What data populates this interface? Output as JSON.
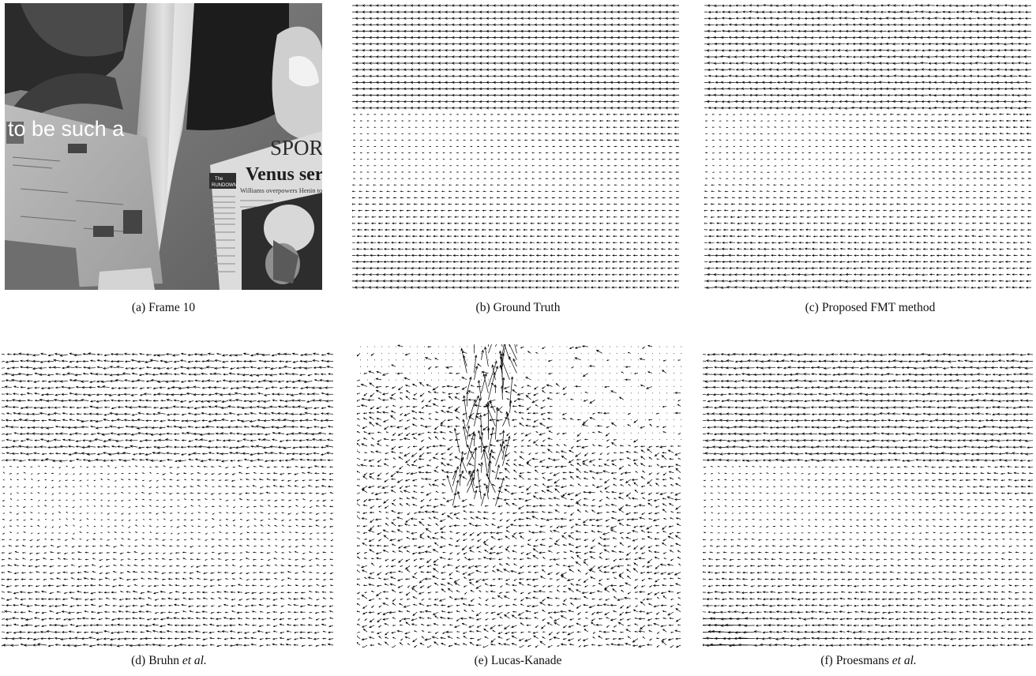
{
  "figure": {
    "panels": [
      {
        "tag": "(a)",
        "name": "Frame 10",
        "suffix": ""
      },
      {
        "tag": "(b)",
        "name": "Ground Truth",
        "suffix": ""
      },
      {
        "tag": "(c)",
        "name": "Proposed FMT method",
        "suffix": ""
      },
      {
        "tag": "(d)",
        "name": "Bruhn",
        "suffix": "et al."
      },
      {
        "tag": "(e)",
        "name": "Lucas-Kanade",
        "suffix": ""
      },
      {
        "tag": "(f)",
        "name": "Proesmans",
        "suffix": "et al."
      }
    ],
    "frame_text": {
      "headline_left": "to be such a",
      "masthead": "SPORT",
      "headline": "Venus serves",
      "subhead": "Williams overpowers Henin to win second",
      "column_head_1": "The",
      "column_head_2": "RUNDOWN"
    }
  }
}
